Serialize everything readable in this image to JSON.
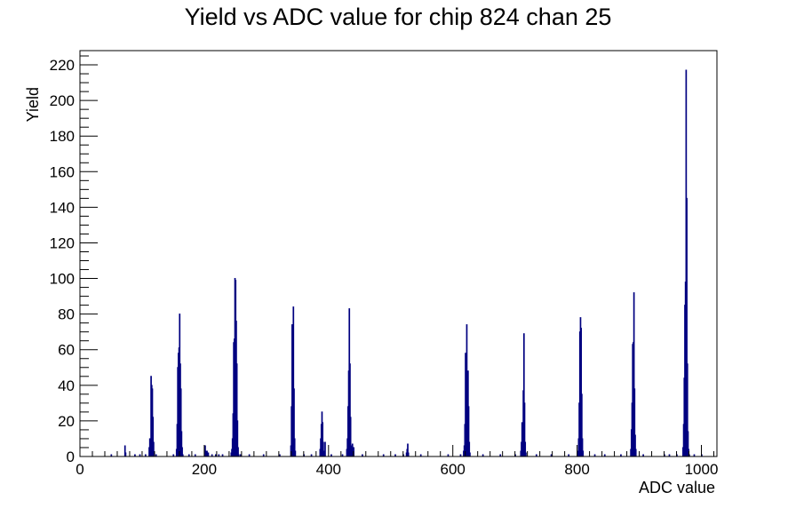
{
  "chart_data": {
    "type": "bar",
    "title": "Yield vs ADC value for chip 824 chan 25",
    "xlabel": "ADC value",
    "ylabel": "Yield",
    "xlim": [
      0,
      1025
    ],
    "ylim": [
      0,
      228
    ],
    "x_ticks": [
      0,
      200,
      400,
      600,
      800,
      1000
    ],
    "y_ticks": [
      0,
      20,
      40,
      60,
      80,
      100,
      120,
      140,
      160,
      180,
      200,
      220
    ],
    "grid": false,
    "legend": "none",
    "series_color": "#000080",
    "bin_width": 1,
    "bins": [
      [
        72,
        6
      ],
      [
        73,
        2
      ],
      [
        111,
        5
      ],
      [
        112,
        10
      ],
      [
        113,
        9
      ],
      [
        114,
        45
      ],
      [
        115,
        40
      ],
      [
        116,
        38
      ],
      [
        117,
        22
      ],
      [
        118,
        8
      ],
      [
        119,
        2
      ],
      [
        155,
        4
      ],
      [
        156,
        18
      ],
      [
        157,
        50
      ],
      [
        158,
        58
      ],
      [
        159,
        61
      ],
      [
        160,
        80
      ],
      [
        161,
        52
      ],
      [
        162,
        38
      ],
      [
        163,
        14
      ],
      [
        164,
        5
      ],
      [
        165,
        1
      ],
      [
        201,
        6
      ],
      [
        202,
        3
      ],
      [
        203,
        2
      ],
      [
        204,
        3
      ],
      [
        205,
        2
      ],
      [
        206,
        2
      ],
      [
        243,
        2
      ],
      [
        244,
        4
      ],
      [
        245,
        10
      ],
      [
        246,
        24
      ],
      [
        247,
        64
      ],
      [
        248,
        66
      ],
      [
        249,
        100
      ],
      [
        250,
        99
      ],
      [
        251,
        76
      ],
      [
        252,
        52
      ],
      [
        253,
        20
      ],
      [
        254,
        5
      ],
      [
        255,
        1
      ],
      [
        339,
        6
      ],
      [
        340,
        28
      ],
      [
        341,
        74
      ],
      [
        342,
        45
      ],
      [
        343,
        84
      ],
      [
        344,
        38
      ],
      [
        345,
        10
      ],
      [
        346,
        3
      ],
      [
        386,
        4
      ],
      [
        387,
        10
      ],
      [
        388,
        18
      ],
      [
        389,
        25
      ],
      [
        390,
        19
      ],
      [
        391,
        8
      ],
      [
        392,
        3
      ],
      [
        394,
        8
      ],
      [
        429,
        4
      ],
      [
        430,
        10
      ],
      [
        431,
        28
      ],
      [
        432,
        48
      ],
      [
        433,
        83
      ],
      [
        434,
        52
      ],
      [
        435,
        22
      ],
      [
        436,
        6
      ],
      [
        438,
        7
      ],
      [
        439,
        4
      ],
      [
        440,
        5
      ],
      [
        525,
        2
      ],
      [
        526,
        4
      ],
      [
        527,
        7
      ],
      [
        528,
        2
      ],
      [
        617,
        3
      ],
      [
        618,
        6
      ],
      [
        619,
        18
      ],
      [
        620,
        58
      ],
      [
        621,
        56
      ],
      [
        622,
        74
      ],
      [
        623,
        40
      ],
      [
        624,
        48
      ],
      [
        625,
        28
      ],
      [
        626,
        8
      ],
      [
        627,
        2
      ],
      [
        709,
        3
      ],
      [
        710,
        8
      ],
      [
        711,
        19
      ],
      [
        712,
        16
      ],
      [
        713,
        37
      ],
      [
        714,
        69
      ],
      [
        715,
        30
      ],
      [
        716,
        8
      ],
      [
        717,
        2
      ],
      [
        801,
        3
      ],
      [
        802,
        10
      ],
      [
        803,
        30
      ],
      [
        804,
        70
      ],
      [
        805,
        78
      ],
      [
        806,
        72
      ],
      [
        807,
        35
      ],
      [
        808,
        10
      ],
      [
        809,
        3
      ],
      [
        886,
        4
      ],
      [
        887,
        15
      ],
      [
        888,
        30
      ],
      [
        889,
        63
      ],
      [
        890,
        64
      ],
      [
        891,
        92
      ],
      [
        892,
        38
      ],
      [
        893,
        12
      ],
      [
        894,
        4
      ],
      [
        970,
        5
      ],
      [
        971,
        18
      ],
      [
        972,
        44
      ],
      [
        973,
        85
      ],
      [
        974,
        98
      ],
      [
        975,
        217
      ],
      [
        976,
        145
      ],
      [
        977,
        52
      ],
      [
        978,
        14
      ],
      [
        979,
        4
      ],
      [
        980,
        1
      ]
    ],
    "scatter_counts": [
      [
        50,
        1
      ],
      [
        88,
        1
      ],
      [
        96,
        1
      ],
      [
        105,
        1
      ],
      [
        122,
        1
      ],
      [
        150,
        1
      ],
      [
        175,
        1
      ],
      [
        185,
        1
      ],
      [
        212,
        1
      ],
      [
        218,
        1
      ],
      [
        223,
        1
      ],
      [
        229,
        1
      ],
      [
        258,
        1
      ],
      [
        272,
        1
      ],
      [
        295,
        1
      ],
      [
        321,
        1
      ],
      [
        360,
        1
      ],
      [
        372,
        1
      ],
      [
        404,
        1
      ],
      [
        422,
        1
      ],
      [
        454,
        1
      ],
      [
        488,
        1
      ],
      [
        507,
        1
      ],
      [
        520,
        1
      ],
      [
        548,
        1
      ],
      [
        592,
        1
      ],
      [
        612,
        1
      ],
      [
        648,
        1
      ],
      [
        676,
        1
      ],
      [
        700,
        1
      ],
      [
        734,
        1
      ],
      [
        758,
        1
      ],
      [
        786,
        1
      ],
      [
        828,
        1
      ],
      [
        844,
        1
      ],
      [
        870,
        1
      ],
      [
        906,
        1
      ],
      [
        940,
        1
      ],
      [
        948,
        1
      ],
      [
        960,
        1
      ],
      [
        988,
        1
      ],
      [
        1000,
        1
      ]
    ]
  }
}
